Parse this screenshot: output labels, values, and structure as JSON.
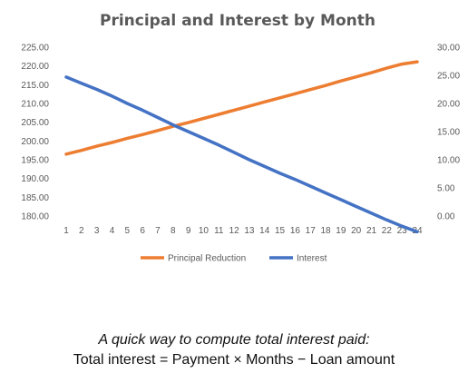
{
  "chart_data": {
    "type": "line",
    "title": "Principal and Interest by Month",
    "x": [
      1,
      2,
      3,
      4,
      5,
      6,
      7,
      8,
      9,
      10,
      11,
      12,
      13,
      14,
      15,
      16,
      17,
      18,
      19,
      20,
      21,
      22,
      23,
      24
    ],
    "series": [
      {
        "name": "Principal Reduction",
        "axis": "left",
        "color": "#ED7D31",
        "values": [
          196.5,
          197.5,
          198.6,
          199.6,
          200.7,
          201.7,
          202.8,
          203.9,
          204.9,
          206.0,
          207.1,
          208.2,
          209.3,
          210.4,
          211.5,
          212.6,
          213.7,
          214.8,
          216.0,
          217.1,
          218.2,
          219.4,
          220.5,
          221.1
        ]
      },
      {
        "name": "Interest",
        "axis": "right",
        "color": "#4472C4",
        "values": [
          24.7,
          23.6,
          22.5,
          21.3,
          20.0,
          18.8,
          17.5,
          16.2,
          15.0,
          13.8,
          12.6,
          11.3,
          10.0,
          8.8,
          7.6,
          6.5,
          5.3,
          4.1,
          2.9,
          1.7,
          0.5,
          -0.7,
          -1.8,
          -2.8
        ]
      }
    ],
    "y_left": {
      "min": 180,
      "max": 225,
      "step": 5,
      "ticks": [
        "180.00",
        "185.00",
        "190.00",
        "195.00",
        "200.00",
        "205.00",
        "210.00",
        "215.00",
        "220.00",
        "225.00"
      ]
    },
    "y_right": {
      "min": 0,
      "max": 30,
      "step": 5,
      "ticks": [
        "0.00",
        "5.00",
        "10.00",
        "15.00",
        "20.00",
        "25.00",
        "30.00"
      ]
    },
    "legend_position": "bottom",
    "grid": false
  },
  "caption": {
    "line1": "A quick way to compute total interest paid:",
    "line2": "Total interest = Payment × Months − Loan amount"
  }
}
